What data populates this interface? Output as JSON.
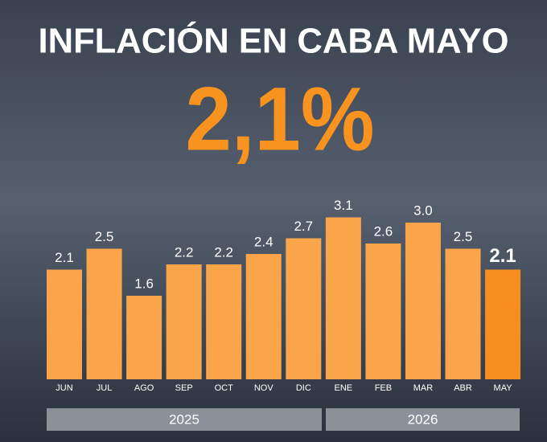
{
  "chart_data": {
    "type": "bar",
    "title": "INFLACIÓN EN CABA MAYO",
    "headline": "2,1%",
    "categories": [
      "JUN",
      "JUL",
      "AGO",
      "SEP",
      "OCT",
      "NOV",
      "DIC",
      "ENE",
      "FEB",
      "MAR",
      "ABR",
      "MAY"
    ],
    "values": [
      2.1,
      2.5,
      1.6,
      2.2,
      2.2,
      2.4,
      2.7,
      3.1,
      2.6,
      3.0,
      2.5,
      2.1
    ],
    "value_labels": [
      "2.1",
      "2.5",
      "1.6",
      "2.2",
      "2.2",
      "2.4",
      "2.7",
      "3.1",
      "2.6",
      "3.0",
      "2.5",
      "2.1"
    ],
    "colors": [
      "#fba54b",
      "#fba54b",
      "#fba54b",
      "#fba54b",
      "#fba54b",
      "#fba54b",
      "#fba54b",
      "#fba54b",
      "#fba54b",
      "#fba54b",
      "#fba54b",
      "#f78f1e"
    ],
    "groups": [
      "2025",
      "2026"
    ]
  }
}
